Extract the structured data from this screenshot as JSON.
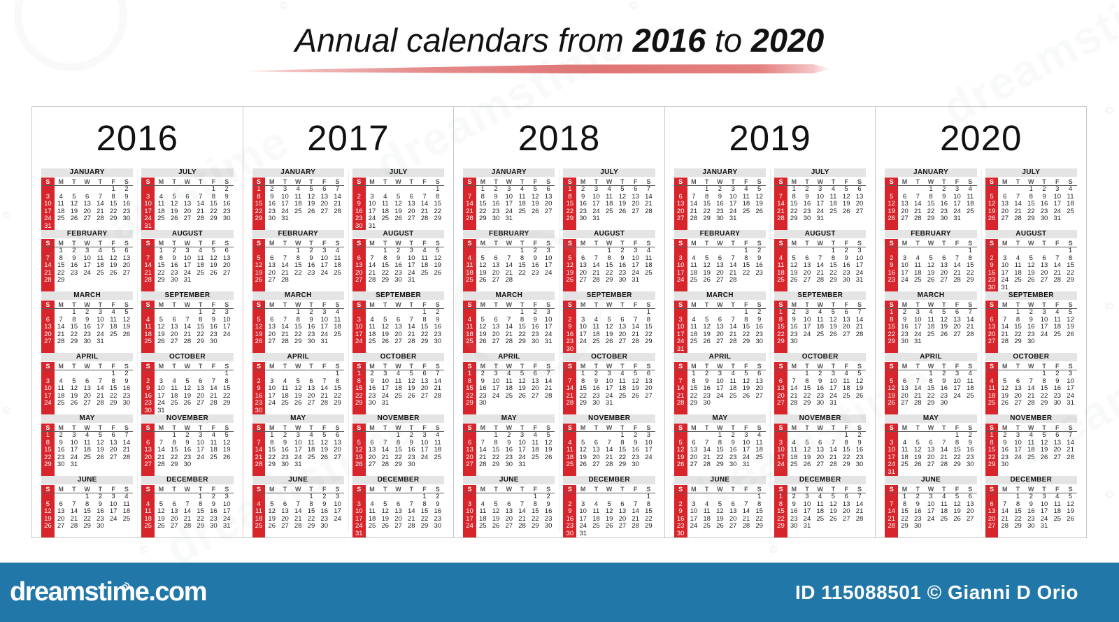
{
  "title": {
    "prefix": "Annual calendars from",
    "from_year": "2016",
    "connector": "to",
    "to_year": "2020"
  },
  "weekdays": [
    "S",
    "M",
    "T",
    "W",
    "T",
    "F",
    "S"
  ],
  "colors": {
    "accent_red": "#d8252b",
    "month_header_gray": "#e4e4e4",
    "footer_blue": "#2177a8",
    "panel_border": "#c9c9c9"
  },
  "watermark": {
    "text": "dreamstime",
    "copyright_symbol": "©"
  },
  "footer": {
    "logo": "dreamstime.com",
    "credit": "ID 115088501 © Gianni D Orio"
  },
  "years": [
    {
      "label": "2016",
      "months": [
        {
          "name": "JANUARY",
          "first_dow": 5,
          "days": 31
        },
        {
          "name": "FEBRUARY",
          "first_dow": 1,
          "days": 29
        },
        {
          "name": "MARCH",
          "first_dow": 2,
          "days": 31
        },
        {
          "name": "APRIL",
          "first_dow": 5,
          "days": 30
        },
        {
          "name": "MAY",
          "first_dow": 0,
          "days": 31
        },
        {
          "name": "JUNE",
          "first_dow": 3,
          "days": 30
        },
        {
          "name": "JULY",
          "first_dow": 5,
          "days": 31
        },
        {
          "name": "AUGUST",
          "first_dow": 1,
          "days": 31
        },
        {
          "name": "SEPTEMBER",
          "first_dow": 4,
          "days": 30
        },
        {
          "name": "OCTOBER",
          "first_dow": 6,
          "days": 31
        },
        {
          "name": "NOVEMBER",
          "first_dow": 2,
          "days": 30
        },
        {
          "name": "DECEMBER",
          "first_dow": 4,
          "days": 31
        }
      ]
    },
    {
      "label": "2017",
      "months": [
        {
          "name": "JANUARY",
          "first_dow": 0,
          "days": 31
        },
        {
          "name": "FEBRUARY",
          "first_dow": 3,
          "days": 28
        },
        {
          "name": "MARCH",
          "first_dow": 3,
          "days": 31
        },
        {
          "name": "APRIL",
          "first_dow": 6,
          "days": 30
        },
        {
          "name": "MAY",
          "first_dow": 1,
          "days": 31
        },
        {
          "name": "JUNE",
          "first_dow": 4,
          "days": 30
        },
        {
          "name": "JULY",
          "first_dow": 6,
          "days": 31
        },
        {
          "name": "AUGUST",
          "first_dow": 2,
          "days": 31
        },
        {
          "name": "SEPTEMBER",
          "first_dow": 5,
          "days": 30
        },
        {
          "name": "OCTOBER",
          "first_dow": 0,
          "days": 31
        },
        {
          "name": "NOVEMBER",
          "first_dow": 3,
          "days": 30
        },
        {
          "name": "DECEMBER",
          "first_dow": 5,
          "days": 31
        }
      ]
    },
    {
      "label": "2018",
      "months": [
        {
          "name": "JANUARY",
          "first_dow": 1,
          "days": 31
        },
        {
          "name": "FEBRUARY",
          "first_dow": 4,
          "days": 28
        },
        {
          "name": "MARCH",
          "first_dow": 4,
          "days": 31
        },
        {
          "name": "APRIL",
          "first_dow": 0,
          "days": 30
        },
        {
          "name": "MAY",
          "first_dow": 2,
          "days": 31
        },
        {
          "name": "JUNE",
          "first_dow": 5,
          "days": 30
        },
        {
          "name": "JULY",
          "first_dow": 0,
          "days": 31
        },
        {
          "name": "AUGUST",
          "first_dow": 3,
          "days": 31
        },
        {
          "name": "SEPTEMBER",
          "first_dow": 6,
          "days": 30
        },
        {
          "name": "OCTOBER",
          "first_dow": 1,
          "days": 31
        },
        {
          "name": "NOVEMBER",
          "first_dow": 4,
          "days": 30
        },
        {
          "name": "DECEMBER",
          "first_dow": 6,
          "days": 31
        }
      ]
    },
    {
      "label": "2019",
      "months": [
        {
          "name": "JANUARY",
          "first_dow": 2,
          "days": 31
        },
        {
          "name": "FEBRUARY",
          "first_dow": 5,
          "days": 28
        },
        {
          "name": "MARCH",
          "first_dow": 5,
          "days": 31
        },
        {
          "name": "APRIL",
          "first_dow": 1,
          "days": 30
        },
        {
          "name": "MAY",
          "first_dow": 3,
          "days": 31
        },
        {
          "name": "JUNE",
          "first_dow": 6,
          "days": 30
        },
        {
          "name": "JULY",
          "first_dow": 1,
          "days": 31
        },
        {
          "name": "AUGUST",
          "first_dow": 4,
          "days": 31
        },
        {
          "name": "SEPTEMBER",
          "first_dow": 0,
          "days": 30
        },
        {
          "name": "OCTOBER",
          "first_dow": 2,
          "days": 31
        },
        {
          "name": "NOVEMBER",
          "first_dow": 5,
          "days": 30
        },
        {
          "name": "DECEMBER",
          "first_dow": 0,
          "days": 31
        }
      ]
    },
    {
      "label": "2020",
      "months": [
        {
          "name": "JANUARY",
          "first_dow": 3,
          "days": 31
        },
        {
          "name": "FEBRUARY",
          "first_dow": 6,
          "days": 29
        },
        {
          "name": "MARCH",
          "first_dow": 0,
          "days": 31
        },
        {
          "name": "APRIL",
          "first_dow": 3,
          "days": 30
        },
        {
          "name": "MAY",
          "first_dow": 5,
          "days": 31
        },
        {
          "name": "JUNE",
          "first_dow": 1,
          "days": 30
        },
        {
          "name": "JULY",
          "first_dow": 3,
          "days": 31
        },
        {
          "name": "AUGUST",
          "first_dow": 6,
          "days": 31
        },
        {
          "name": "SEPTEMBER",
          "first_dow": 2,
          "days": 30
        },
        {
          "name": "OCTOBER",
          "first_dow": 4,
          "days": 31
        },
        {
          "name": "NOVEMBER",
          "first_dow": 0,
          "days": 30
        },
        {
          "name": "DECEMBER",
          "first_dow": 2,
          "days": 31
        }
      ]
    }
  ]
}
